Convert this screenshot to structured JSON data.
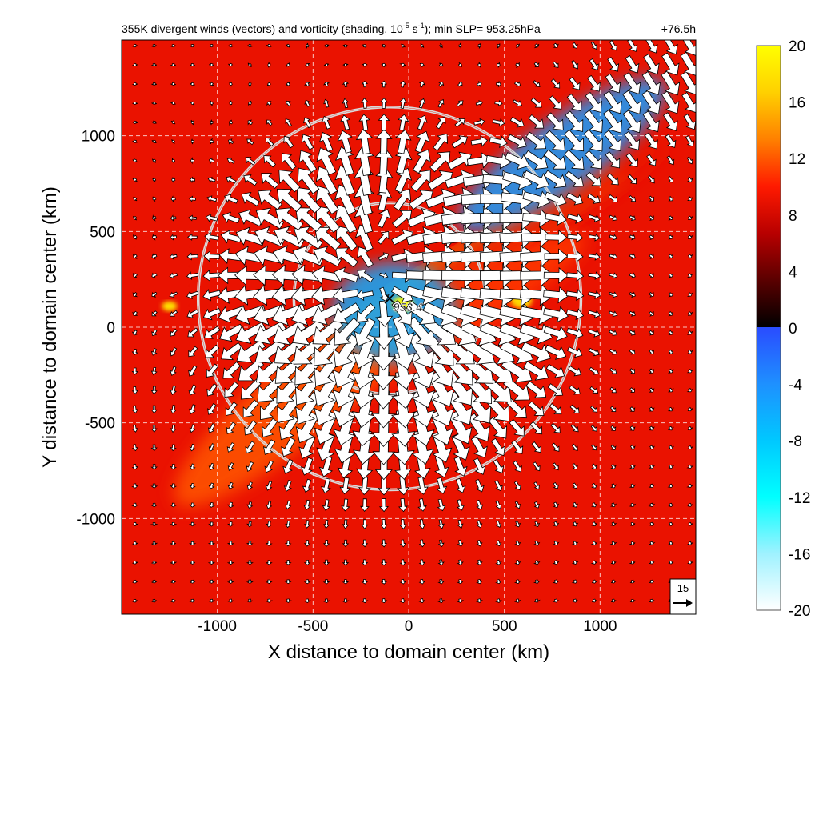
{
  "chart_data": {
    "type": "heatmap",
    "title": "355K divergent winds (vectors) and vorticity (shading, 10",
    "title_exp1": "-5",
    "title_mid": " s",
    "title_exp2": "-1",
    "title_end": "); min SLP= 953.25hPa",
    "forecast_time": "+76.5h",
    "xlabel": "X distance to domain center (km)",
    "ylabel": "Y distance to domain center (km)",
    "xlim": [
      -1500,
      1500
    ],
    "ylim": [
      -1500,
      1500
    ],
    "x_ticks": [
      {
        "value": -1000,
        "label": "-1000"
      },
      {
        "value": -500,
        "label": "-500"
      },
      {
        "value": 0,
        "label": "0"
      },
      {
        "value": 500,
        "label": "500"
      },
      {
        "value": 1000,
        "label": "1000"
      }
    ],
    "y_ticks": [
      {
        "value": 1000,
        "label": "1000"
      },
      {
        "value": 500,
        "label": "500"
      },
      {
        "value": 0,
        "label": "0"
      },
      {
        "value": -500,
        "label": "-500"
      },
      {
        "value": -1000,
        "label": "-1000"
      }
    ],
    "grid": true,
    "colorbar": {
      "min": -20,
      "max": 20,
      "ticks": [
        {
          "value": 20,
          "label": "20"
        },
        {
          "value": 16,
          "label": "16"
        },
        {
          "value": 12,
          "label": "12"
        },
        {
          "value": 8,
          "label": "8"
        },
        {
          "value": 4,
          "label": "4"
        },
        {
          "value": 0,
          "label": "0"
        },
        {
          "value": -4,
          "label": "-4"
        },
        {
          "value": -8,
          "label": "-8"
        },
        {
          "value": -12,
          "label": "-12"
        },
        {
          "value": -16,
          "label": "-16"
        },
        {
          "value": -20,
          "label": "-20"
        }
      ],
      "positive_stops": [
        "#000000",
        "#5a0000",
        "#b80000",
        "#ff1a00",
        "#ff8000",
        "#ffd000",
        "#ffff00"
      ],
      "negative_stops": [
        "#2a4cff",
        "#1e90ff",
        "#00c8ff",
        "#00ffff",
        "#9ff2ff",
        "#ffffff"
      ]
    },
    "center_marker": {
      "x": -100,
      "y": 150,
      "label": "953.4"
    },
    "rings_km": [
      500,
      1000
    ],
    "ring_center": {
      "x": -100,
      "y": 150
    },
    "reference_vector": {
      "label": "15",
      "speed": 15
    },
    "vector_field": {
      "x_start": -1430,
      "x_step": 100,
      "nx": 30,
      "y_start": -1430,
      "y_step": 100,
      "ny": 30,
      "center": {
        "x": -100,
        "y": 150
      },
      "inner_radius_km": 500,
      "outflow_peak_speed": 20,
      "background_speed": 2.5,
      "band_flow_speed": 13
    },
    "shading_features": [
      {
        "kind": "negative_core",
        "x": -80,
        "y": 80,
        "rx": 320,
        "ry": 260,
        "value": -6
      },
      {
        "kind": "negative_band",
        "x": 800,
        "y": 900,
        "rx": 650,
        "ry": 180,
        "angle_deg": -35,
        "value": -5
      },
      {
        "kind": "positive_band",
        "x": 350,
        "y": 380,
        "rx": 900,
        "ry": 70,
        "angle_deg": -30,
        "value": 16
      },
      {
        "kind": "positive_band",
        "x": 600,
        "y": 500,
        "rx": 900,
        "ry": 110,
        "angle_deg": -32,
        "value": 9
      },
      {
        "kind": "positive_band",
        "x": 100,
        "y": 0,
        "rx": 950,
        "ry": 160,
        "angle_deg": -30,
        "value": 11
      },
      {
        "kind": "positive_band",
        "x": -600,
        "y": -400,
        "rx": 800,
        "ry": 200,
        "angle_deg": -40,
        "value": 12
      },
      {
        "kind": "positive_spot",
        "x": -1250,
        "y": 110,
        "rx": 40,
        "ry": 25,
        "value": 19
      },
      {
        "kind": "positive_spot",
        "x": -30,
        "y": 120,
        "rx": 55,
        "ry": 40,
        "value": 20
      },
      {
        "kind": "positive_spot",
        "x": 590,
        "y": 140,
        "rx": 55,
        "ry": 40,
        "value": 18
      }
    ]
  }
}
